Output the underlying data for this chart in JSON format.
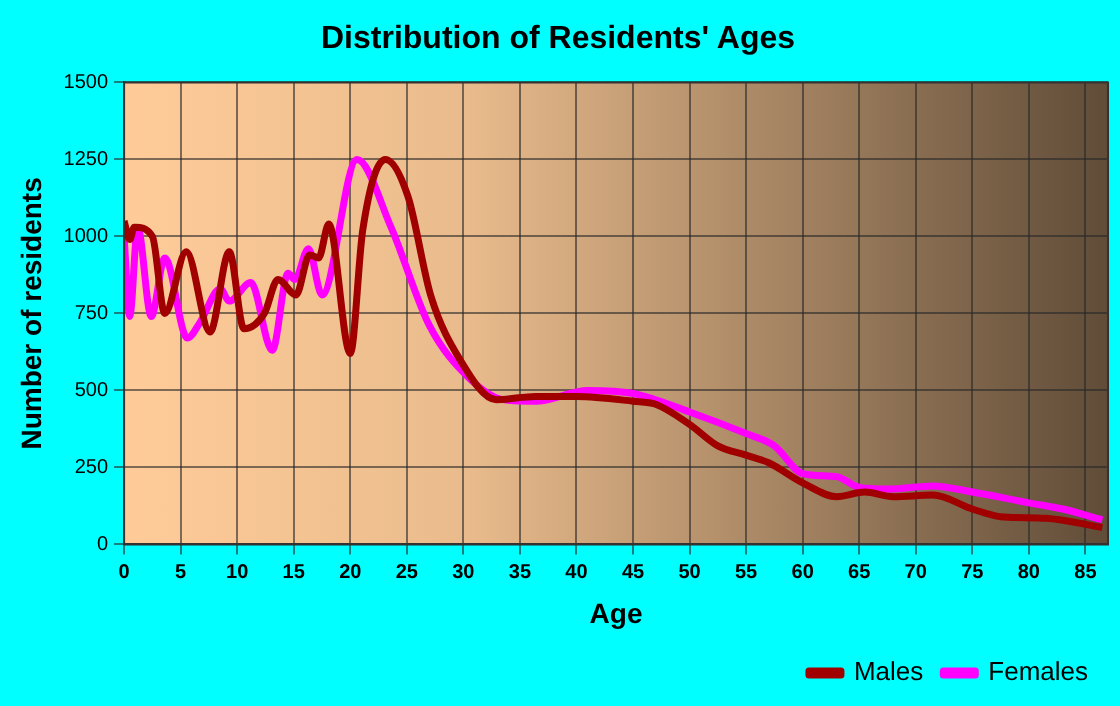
{
  "chart_data": {
    "type": "line",
    "title": "Distribution of Residents' Ages",
    "xlabel": "Age",
    "ylabel": "Number of residents",
    "xlim": [
      0,
      87
    ],
    "xticks": [
      0,
      5,
      10,
      15,
      20,
      25,
      30,
      35,
      40,
      45,
      50,
      55,
      60,
      65,
      70,
      75,
      80,
      85
    ],
    "ylim": [
      0,
      1500
    ],
    "yticks": [
      0,
      250,
      500,
      750,
      1000,
      1250,
      1500
    ],
    "grid": true,
    "legend": "bottom right",
    "marker": "none",
    "line_style": "solid",
    "series": [
      {
        "name": "Males",
        "color": "#a00000",
        "x": [
          0,
          0.5,
          0.9,
          2.5,
          3.6,
          5.5,
          7.6,
          9.3,
          10.6,
          12.4,
          13.6,
          15.2,
          16.4,
          17.2,
          18.1,
          20,
          21.1,
          23.1,
          25.1,
          27.1,
          29.7,
          32.9,
          36.4,
          40,
          45,
          47,
          50,
          52.5,
          55,
          57,
          60,
          63,
          65.5,
          68,
          71.5,
          75,
          77.5,
          81.5,
          86.5
        ],
        "values": [
          1050,
          990,
          1030,
          1000,
          750,
          950,
          690,
          950,
          700,
          750,
          860,
          810,
          940,
          930,
          1040,
          620,
          1020,
          1250,
          1130,
          810,
          600,
          470,
          480,
          480,
          465,
          455,
          390,
          320,
          290,
          265,
          200,
          155,
          170,
          155,
          160,
          115,
          90,
          85,
          55
        ]
      },
      {
        "name": "Females",
        "color": "#ff00ff",
        "x": [
          0,
          0.5,
          1.2,
          2.4,
          3.6,
          5.6,
          6.7,
          8.5,
          9.3,
          11.2,
          13.1,
          14.5,
          15.1,
          16.3,
          17.5,
          20.6,
          23.6,
          27,
          30.5,
          33.5,
          36.4,
          41,
          45,
          50,
          55,
          57.5,
          60,
          63,
          65,
          67.5,
          71.5,
          75,
          80,
          83,
          86.5
        ],
        "values": [
          1000,
          740,
          1030,
          740,
          930,
          670,
          720,
          830,
          790,
          850,
          630,
          880,
          860,
          960,
          810,
          1250,
          1030,
          710,
          540,
          470,
          465,
          500,
          490,
          430,
          360,
          320,
          230,
          220,
          185,
          180,
          190,
          170,
          135,
          115,
          80
        ]
      }
    ]
  }
}
